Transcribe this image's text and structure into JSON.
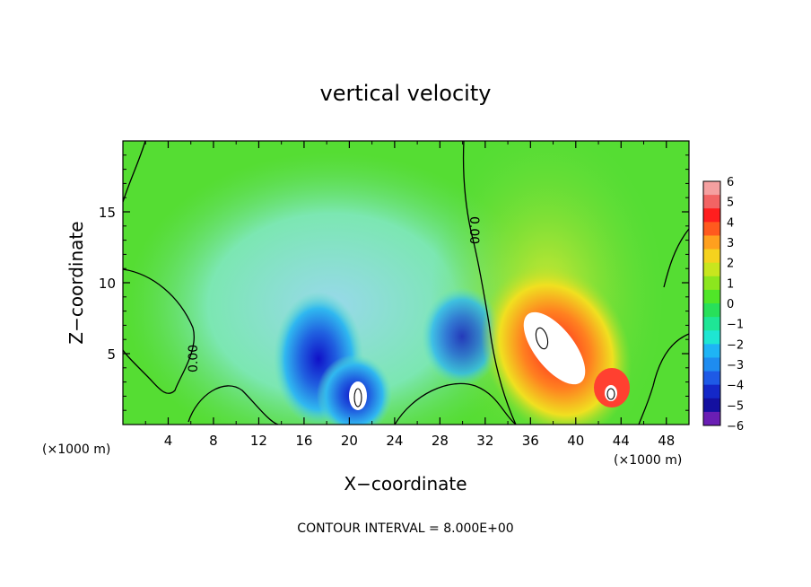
{
  "chart_data": {
    "type": "heatmap",
    "title": "vertical velocity",
    "xlabel": "X−coordinate",
    "ylabel": "Z−coordinate",
    "x_unit_left": "(×1000 m)",
    "x_unit_right": "(×1000 m)",
    "xlim": [
      0,
      50
    ],
    "ylim": [
      0,
      20
    ],
    "x_ticks": [
      "4",
      "8",
      "12",
      "16",
      "20",
      "24",
      "28",
      "32",
      "36",
      "40",
      "44",
      "48"
    ],
    "y_ticks": [
      "5",
      "10",
      "15"
    ],
    "footer": "CONTOUR INTERVAL = 8.000E+00",
    "contour_label": "0.00",
    "colorbar": {
      "labels": [
        "6",
        "5",
        "4",
        "3",
        "2",
        "1",
        "0",
        "−1",
        "−2",
        "−3",
        "−4",
        "−5",
        "−6"
      ],
      "range": [
        -6,
        6
      ]
    }
  }
}
